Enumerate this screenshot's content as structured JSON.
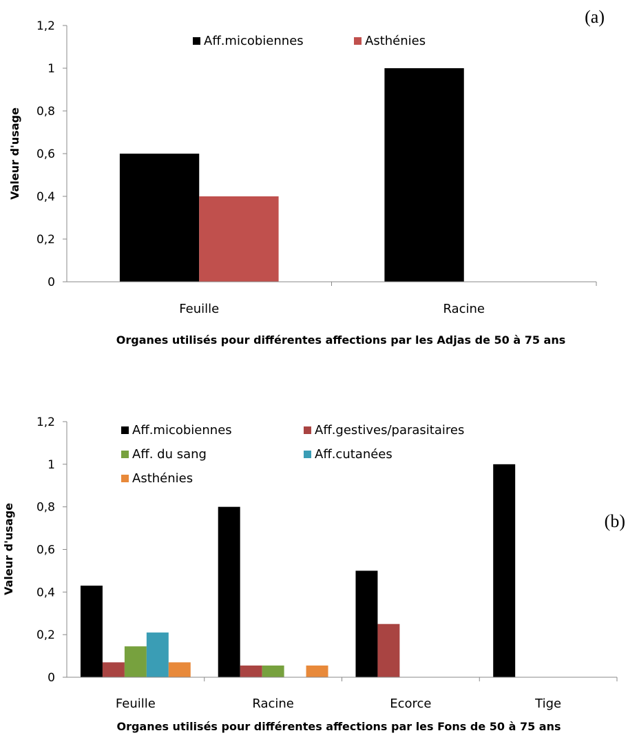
{
  "chart_data": [
    {
      "type": "bar",
      "panel_label": "(a)",
      "categories": [
        "Feuille",
        "Racine"
      ],
      "series": [
        {
          "name": "Aff.micobiennes",
          "color": "#000000",
          "values": [
            0.6,
            1.0
          ]
        },
        {
          "name": "Asthénies",
          "color": "#C0504D",
          "values": [
            0.4,
            0
          ]
        }
      ],
      "xlabel": "Organes utilisés pour différentes affections  par les Adjas de 50 à 75 ans",
      "ylabel": "Valeur d'usage",
      "ylim": [
        0,
        1.2
      ],
      "yticks": [
        "0",
        "0,2",
        "0,4",
        "0,6",
        "0,8",
        "1",
        "1,2"
      ],
      "legend_position": "top"
    },
    {
      "type": "bar",
      "panel_label": "(b)",
      "categories": [
        "Feuille",
        "Racine",
        "Ecorce",
        "Tige"
      ],
      "series": [
        {
          "name": "Aff.micobiennes",
          "color": "#000000",
          "values": [
            0.43,
            0.8,
            0.5,
            1.0
          ]
        },
        {
          "name": "Aff.gestives/parasitaires",
          "color": "#A94442",
          "values": [
            0.07,
            0.055,
            0.25,
            0
          ]
        },
        {
          "name": "Aff. du sang",
          "color": "#77A13E",
          "values": [
            0.145,
            0.055,
            0,
            0
          ]
        },
        {
          "name": "Aff.cutanées",
          "color": "#3A9DB5",
          "values": [
            0.21,
            0,
            0,
            0
          ]
        },
        {
          "name": "Asthénies",
          "color": "#E8893A",
          "values": [
            0.07,
            0.055,
            0,
            0
          ]
        }
      ],
      "xlabel": "Organes utilisés pour différentes affections  par les Fons de 50 à 75 ans",
      "ylabel": "Valeur d'usage",
      "ylim": [
        0,
        1.2
      ],
      "yticks": [
        "0",
        "0,2",
        "0,4",
        "0,6",
        "0,8",
        "1",
        "1,2"
      ],
      "legend_position": "top-left"
    }
  ]
}
